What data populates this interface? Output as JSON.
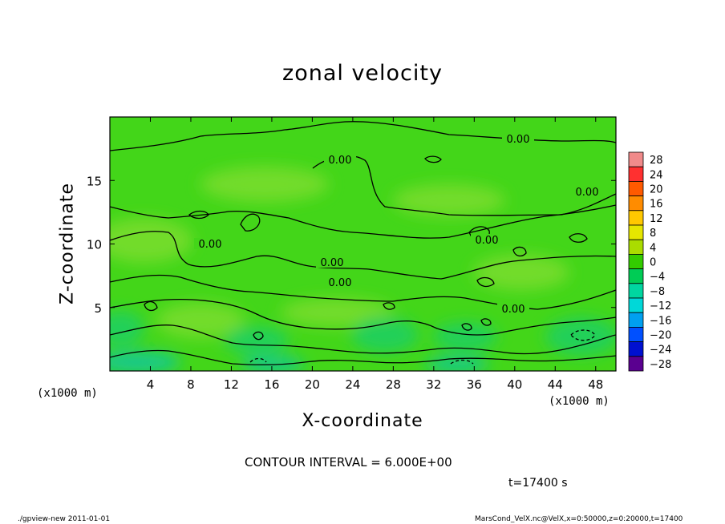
{
  "chart_data": {
    "type": "heatmap",
    "title": "zonal velocity",
    "xlabel": "X-coordinate",
    "ylabel": "Z-coordinate",
    "x_unit_label": "(x1000 m)",
    "y_unit_label": "(x1000 m)",
    "xlim": [
      0,
      50
    ],
    "ylim": [
      0,
      20
    ],
    "x_ticks": [
      4,
      8,
      12,
      16,
      20,
      24,
      28,
      32,
      36,
      40,
      44,
      48
    ],
    "y_ticks": [
      5,
      10,
      15
    ],
    "contour_labels": [
      "0.00",
      "0.00",
      "0.00",
      "0.00",
      "0.00",
      "0.00",
      "0.00",
      "0.00"
    ],
    "contour_interval": "CONTOUR INTERVAL = 6.000E+00",
    "time": "t=17400 s",
    "colorbar": {
      "levels": [
        28,
        24,
        20,
        16,
        12,
        8,
        4,
        0,
        -4,
        -8,
        -12,
        -16,
        -20,
        -24,
        -28
      ],
      "level_labels": [
        "28",
        "24",
        "20",
        "16",
        "12",
        "8",
        "4",
        "0",
        "−4",
        "−8",
        "−12",
        "−16",
        "−20",
        "−24",
        "−28"
      ],
      "colors": [
        "#f08a8a",
        "#ff3030",
        "#ff5a00",
        "#ff8c00",
        "#ffc800",
        "#e6e600",
        "#aadc00",
        "#33cc00",
        "#00cc55",
        "#00d6a0",
        "#00d8d8",
        "#00a0f0",
        "#0050ff",
        "#0010d0",
        "#5a0090"
      ]
    },
    "field_colors": {
      "background": "#43d619",
      "positive_patch": "#72dc2a",
      "negative_patch": "#23d058",
      "strong_negative_patch": "#14c98a"
    }
  },
  "footer": {
    "left": "./gpview-new   2011-01-01",
    "right": "MarsCond_VelX.nc@VelX,x=0:50000,z=0:20000,t=17400"
  }
}
